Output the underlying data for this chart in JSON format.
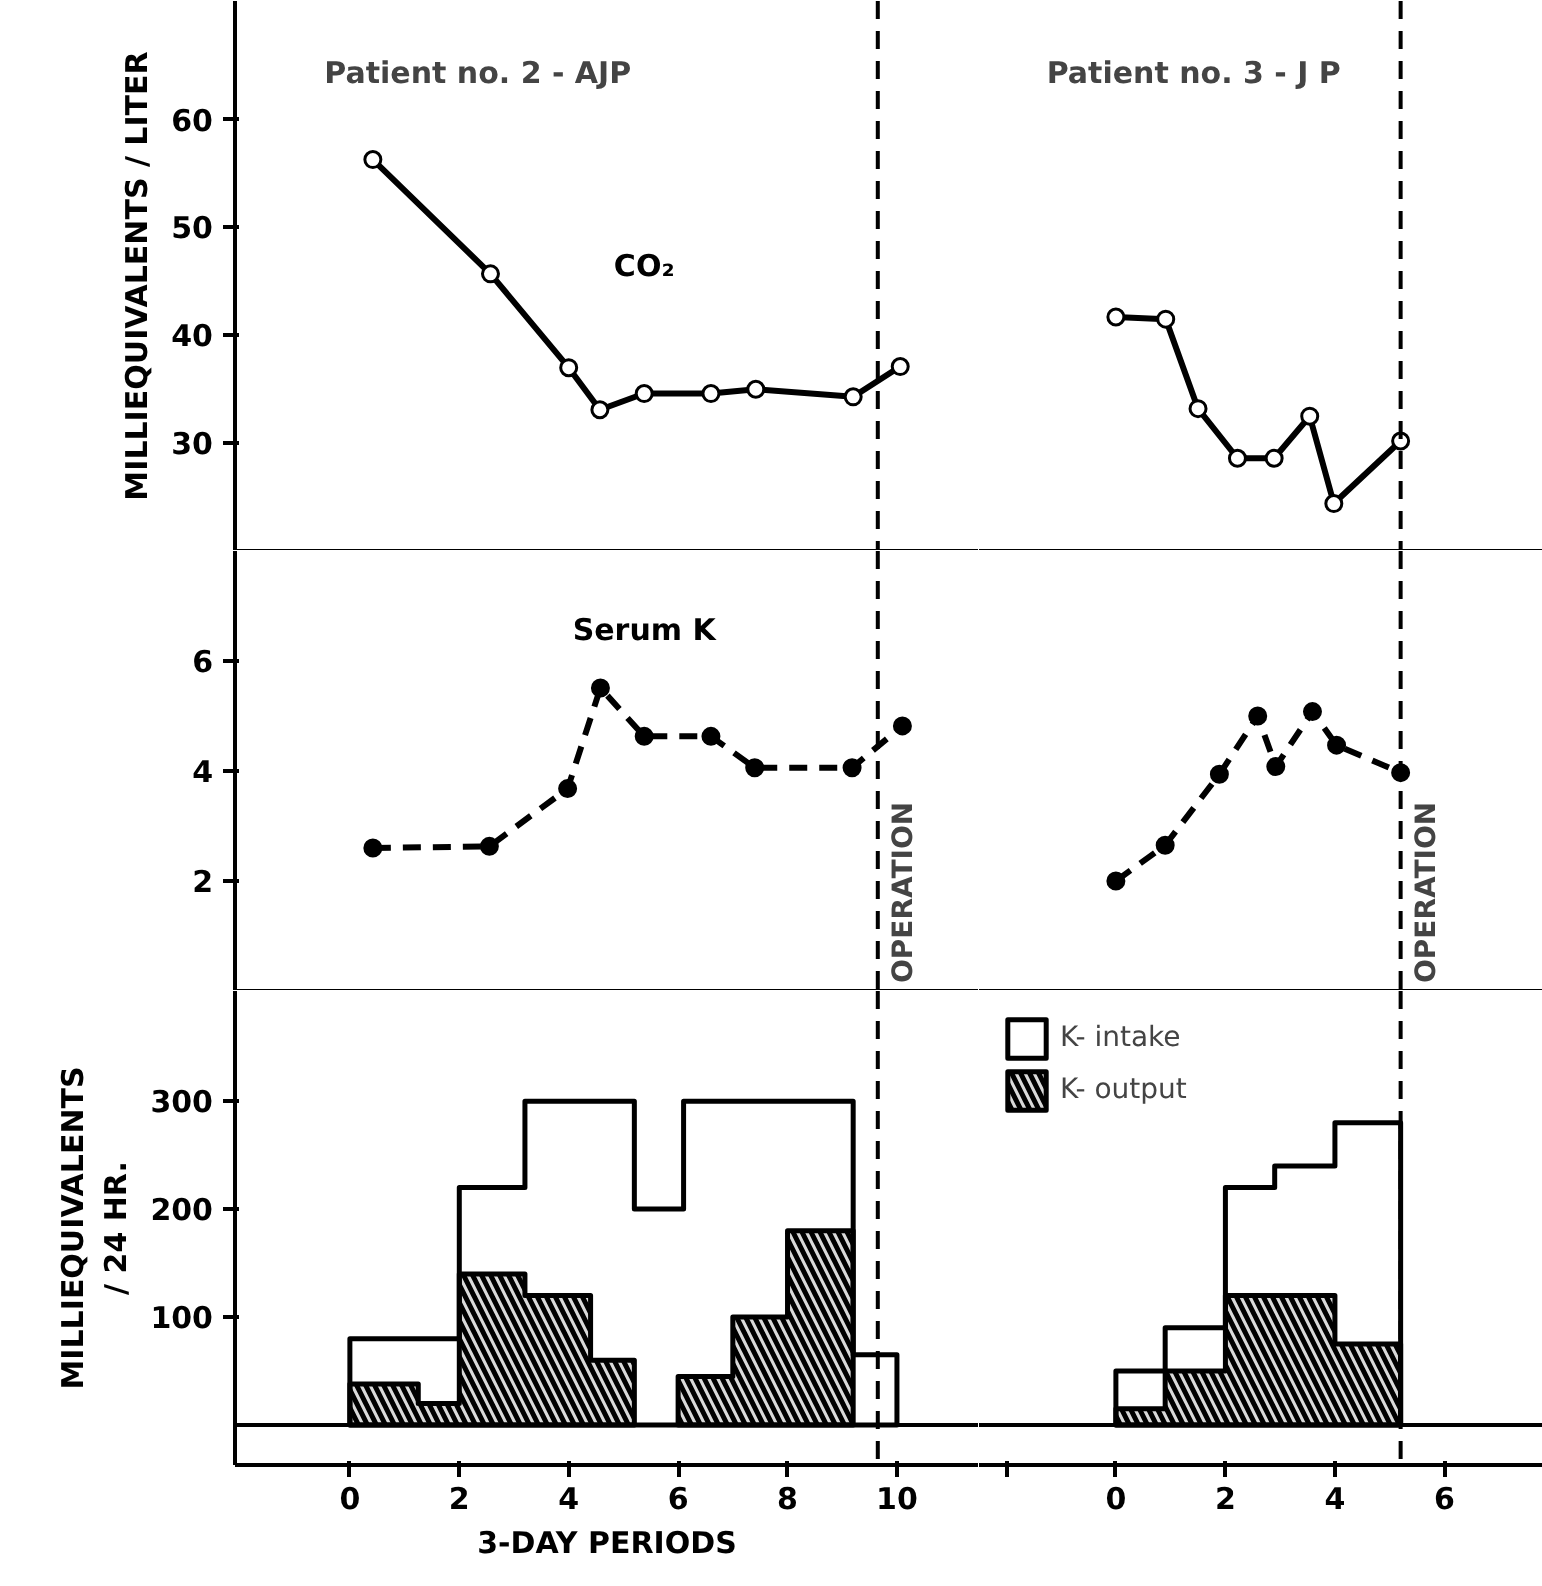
{
  "chart_data": [
    {
      "type": "line",
      "ylabel": "MILLIEQUIVALENTS / LITER",
      "annotations": [
        "Patient no. 2 - AJP"
      ],
      "xlim": [
        -2.1,
        11.5
      ],
      "ylim": [
        20,
        71
      ],
      "yticks": [
        30,
        40,
        50,
        60
      ],
      "tick_labels": "y",
      "marker": "circle",
      "line_style": "solid",
      "series": [
        {
          "name": "CO₂",
          "color": "#000000",
          "x": [
            0.42,
            2.57,
            4.0,
            4.57,
            5.38,
            6.6,
            7.42,
            9.2,
            10.06
          ],
          "values": [
            56.3,
            45.7,
            37.0,
            33.1,
            34.6,
            34.6,
            35.0,
            34.3,
            37.1
          ]
        }
      ],
      "ref_lines": [
        {
          "axis": "x",
          "value": 9.65,
          "line_style": "dashed"
        }
      ]
    },
    {
      "type": "line",
      "annotations": [
        "Patient no. 3 - J P"
      ],
      "xlim": [
        -2.5,
        7.8
      ],
      "ylim": [
        20,
        71
      ],
      "tick_labels": false,
      "marker": "circle",
      "line_style": "solid",
      "series": [
        {
          "color": "#000000",
          "x": [
            0,
            0.91,
            1.5,
            2.22,
            2.89,
            3.54,
            3.98,
            5.2
          ],
          "values": [
            41.7,
            41.5,
            33.2,
            28.6,
            28.6,
            32.5,
            24.4,
            30.2
          ]
        }
      ],
      "ref_lines": [
        {
          "axis": "x",
          "value": 5.2,
          "line_style": "dashed"
        }
      ]
    },
    {
      "type": "line",
      "xlim": [
        -2.1,
        11.5
      ],
      "ylim": [
        0,
        8
      ],
      "yticks": [
        2,
        4,
        6
      ],
      "tick_labels": "y",
      "marker": "circle",
      "line_style": "dashed",
      "series": [
        {
          "name": "Serum K",
          "color": "#000000",
          "x": [
            0.42,
            2.55,
            3.98,
            4.58,
            5.38,
            6.6,
            7.4,
            9.18,
            10.1
          ],
          "values": [
            2.6,
            2.63,
            3.68,
            5.51,
            4.63,
            4.63,
            4.06,
            4.06,
            4.82
          ]
        }
      ],
      "ref_lines": [
        {
          "axis": "x",
          "value": 9.65,
          "label": "OPERATION",
          "line_style": "dashed"
        }
      ]
    },
    {
      "type": "line",
      "xlim": [
        -2.5,
        7.8
      ],
      "ylim": [
        0,
        8
      ],
      "tick_labels": false,
      "marker": "circle",
      "line_style": "dashed",
      "series": [
        {
          "color": "#000000",
          "x": [
            0,
            0.9,
            1.89,
            2.59,
            2.92,
            3.59,
            4.03,
            5.2
          ],
          "values": [
            2.0,
            2.65,
            3.94,
            5.0,
            4.08,
            5.08,
            4.47,
            3.97
          ]
        }
      ],
      "ref_lines": [
        {
          "axis": "x",
          "value": 5.2,
          "label": "OPERATION",
          "line_style": "dashed"
        }
      ]
    },
    {
      "type": "area",
      "xlabel": "3-DAY PERIODS",
      "ylabel": "MILLIEQUIVALENTS\n/ 24 HR.",
      "xlim": [
        -2.1,
        11.5
      ],
      "ylim": [
        -37,
        402
      ],
      "yticks": [
        100,
        200,
        300
      ],
      "xticks": [
        0,
        2,
        4,
        6,
        8,
        10
      ],
      "series": [
        {
          "color": "#ffffff",
          "x": [
            0,
            0,
            2,
            2,
            3.2,
            3.2,
            5.2,
            5.2,
            6.1,
            6.1,
            9.2,
            9.2,
            10,
            10
          ],
          "values": [
            0,
            80,
            80,
            220,
            220,
            300,
            300,
            200,
            200,
            300,
            300,
            65,
            65,
            0
          ]
        },
        {
          "color": "#000000",
          "x": [
            0,
            0,
            1.25,
            1.25,
            2,
            2,
            3.2,
            3.2,
            4.4,
            4.4,
            5.2,
            5.2,
            null,
            6,
            6,
            7,
            7,
            8,
            8,
            9.2,
            9.2
          ],
          "values": [
            0,
            38,
            38,
            20,
            20,
            140,
            140,
            120,
            120,
            60,
            60,
            0,
            null,
            0,
            45,
            45,
            100,
            100,
            180,
            180,
            0
          ]
        }
      ],
      "ref_lines": [
        {
          "axis": "y",
          "value": 0,
          "line_style": "solid"
        },
        {
          "axis": "x",
          "value": 9.65,
          "line_style": "dashed"
        }
      ]
    },
    {
      "type": "area",
      "xlim": [
        -2.5,
        7.8
      ],
      "ylim": [
        -37,
        402
      ],
      "xticks": [
        {
          "value": -2,
          "label": null
        },
        0,
        2,
        4,
        6
      ],
      "tick_labels": "x",
      "legend": "top left",
      "series": [
        {
          "name": "K- intake",
          "color": "#ffffff",
          "x": [
            0,
            0,
            0.9,
            0.9,
            2,
            2,
            2.9,
            2.9,
            4,
            4,
            5.2,
            5.2
          ],
          "values": [
            0,
            50,
            50,
            90,
            90,
            220,
            220,
            240,
            240,
            280,
            280,
            0
          ]
        },
        {
          "name": "K- output",
          "color": "#000000",
          "x": [
            0,
            0,
            0.9,
            0.9,
            2,
            2,
            4,
            4,
            5.2,
            5.2
          ],
          "values": [
            0,
            15,
            15,
            50,
            50,
            120,
            120,
            75,
            75,
            0
          ]
        }
      ],
      "ref_lines": [
        {
          "axis": "y",
          "value": 0,
          "line_style": "solid"
        },
        {
          "axis": "x",
          "value": 5.2,
          "line_style": "dashed"
        }
      ]
    }
  ]
}
